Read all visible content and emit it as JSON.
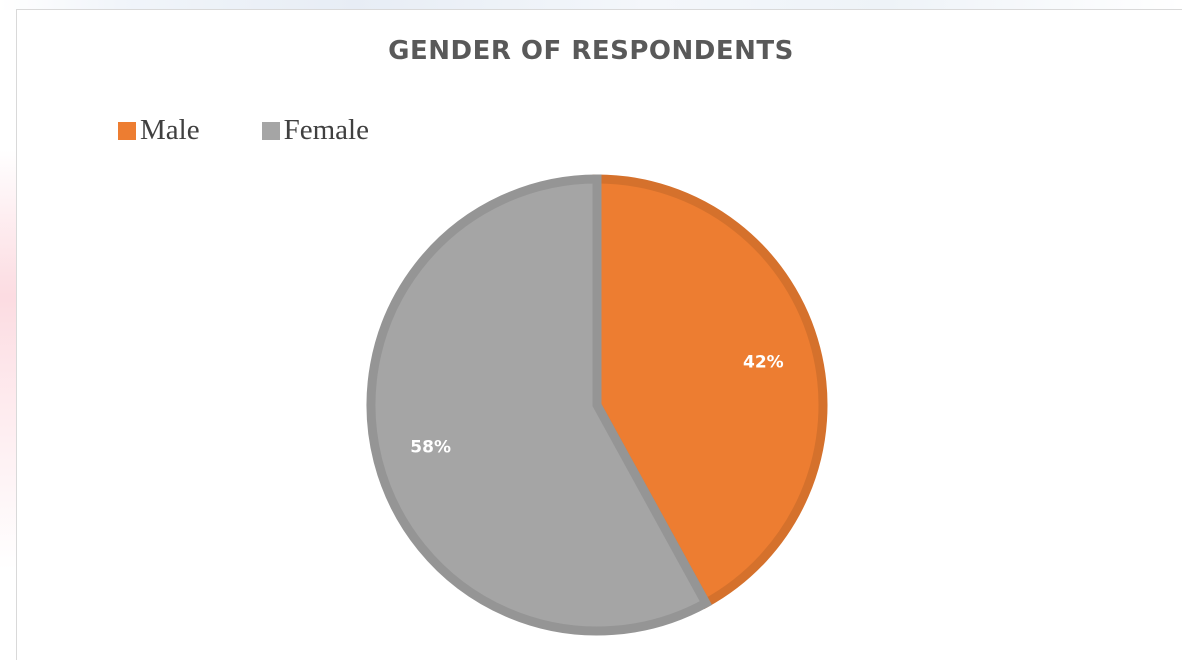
{
  "chart_data": {
    "type": "pie",
    "title": "GENDER OF RESPONDENTS",
    "legend_position": "top-left",
    "categories": [
      "Male",
      "Female"
    ],
    "values": [
      42,
      58
    ],
    "labels": [
      "42%",
      "58%"
    ],
    "colors": [
      "#ed7d31",
      "#a5a5a5"
    ],
    "start_angle_deg": 0,
    "direction": "clockwise"
  }
}
